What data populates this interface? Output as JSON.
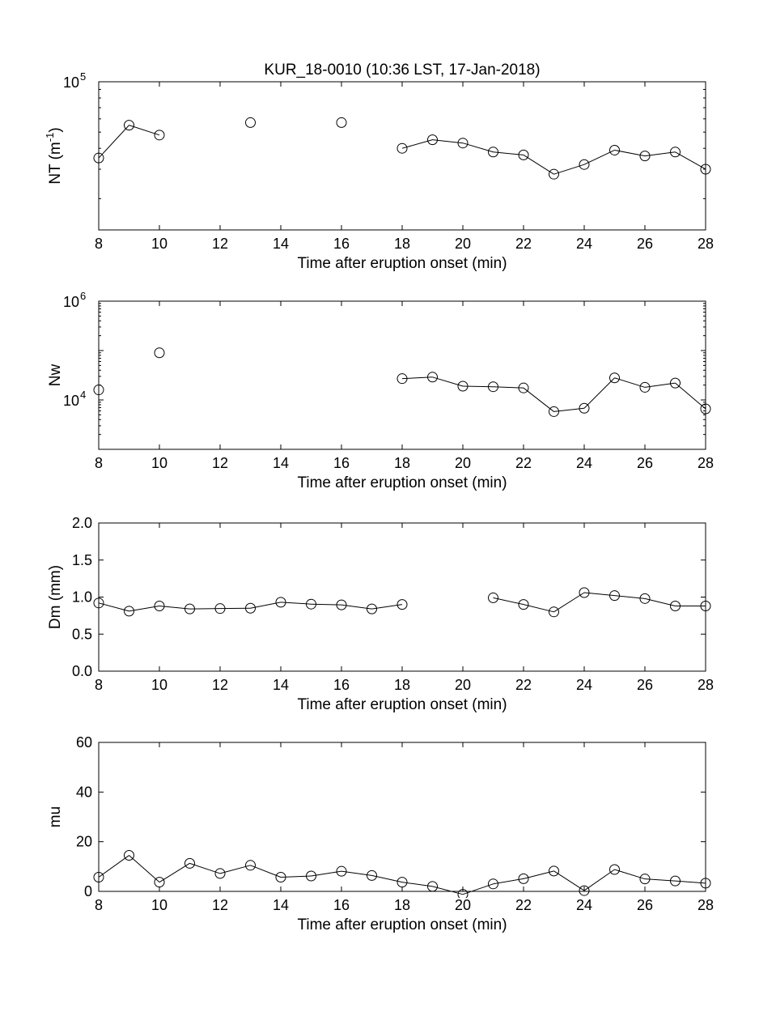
{
  "figure_title": "KUR_18-0010 (10:36 LST, 17-Jan-2018)",
  "chart_data": [
    {
      "type": "line",
      "yscale": "log",
      "ylabel": "NT (m",
      "ylabel_sup": "-1",
      "ylabel_close": ")",
      "xlabel": "Time after eruption onset (min)",
      "xlim": [
        8,
        28
      ],
      "ylim": [
        13000,
        100000
      ],
      "xticks": [
        "8",
        "10",
        "12",
        "14",
        "16",
        "18",
        "20",
        "22",
        "24",
        "26",
        "28"
      ],
      "yticks": [
        {
          "base": "10",
          "exp": "5",
          "value": 100000
        }
      ],
      "x": [
        8,
        9,
        10,
        13,
        16,
        18,
        19,
        20,
        21,
        22,
        23,
        24,
        25,
        26,
        27,
        28
      ],
      "y": [
        35000,
        55000,
        48000,
        57000,
        57000,
        40000,
        45000,
        43000,
        38000,
        36500,
        28000,
        32000,
        39000,
        36000,
        38000,
        30000
      ]
    },
    {
      "type": "line",
      "yscale": "log",
      "ylabel": "Nw",
      "xlabel": "Time after eruption onset (min)",
      "xlim": [
        8,
        28
      ],
      "ylim": [
        1000,
        1000000
      ],
      "xticks": [
        "8",
        "10",
        "12",
        "14",
        "16",
        "18",
        "20",
        "22",
        "24",
        "26",
        "28"
      ],
      "yticks": [
        {
          "base": "10",
          "exp": "6",
          "value": 1000000
        },
        {
          "base": "10",
          "exp": "4",
          "value": 10000
        }
      ],
      "x": [
        8,
        10,
        18,
        19,
        20,
        21,
        22,
        23,
        24,
        25,
        26,
        27,
        28
      ],
      "y": [
        16000,
        90000,
        27000,
        29000,
        19000,
        18500,
        17500,
        5800,
        6800,
        28000,
        18000,
        22000,
        6600
      ]
    },
    {
      "type": "line",
      "ylabel": "Dm (mm)",
      "xlabel": "Time after eruption onset (min)",
      "xlim": [
        8,
        28
      ],
      "ylim": [
        0,
        2
      ],
      "xticks": [
        "8",
        "10",
        "12",
        "14",
        "16",
        "18",
        "20",
        "22",
        "24",
        "26",
        "28"
      ],
      "yticks": [
        "0.0",
        "0.5",
        "1.0",
        "1.5",
        "2.0"
      ],
      "x": [
        8,
        9,
        10,
        11,
        12,
        13,
        14,
        15,
        16,
        17,
        18,
        21,
        22,
        23,
        24,
        25,
        26,
        27,
        28
      ],
      "y": [
        0.92,
        0.81,
        0.88,
        0.84,
        0.845,
        0.85,
        0.93,
        0.905,
        0.895,
        0.84,
        0.9,
        0.99,
        0.9,
        0.8,
        1.06,
        1.02,
        0.98,
        0.88,
        0.88
      ]
    },
    {
      "type": "line",
      "ylabel": "mu",
      "xlabel": "Time after eruption onset (min)",
      "xlim": [
        8,
        28
      ],
      "ylim": [
        0,
        60
      ],
      "xticks": [
        "8",
        "10",
        "12",
        "14",
        "16",
        "18",
        "20",
        "22",
        "24",
        "26",
        "28"
      ],
      "yticks": [
        "0",
        "20",
        "40",
        "60"
      ],
      "x": [
        8,
        9,
        10,
        11,
        12,
        13,
        14,
        15,
        16,
        17,
        18,
        19,
        20,
        21,
        22,
        23,
        24,
        25,
        26,
        27,
        28
      ],
      "y": [
        5.7,
        14.5,
        3.7,
        11.3,
        7.2,
        10.5,
        5.7,
        6.2,
        8.1,
        6.4,
        3.7,
        2.0,
        -1.2,
        3.0,
        5.1,
        8.2,
        0.3,
        8.8,
        5.0,
        4.2,
        3.3
      ]
    }
  ]
}
